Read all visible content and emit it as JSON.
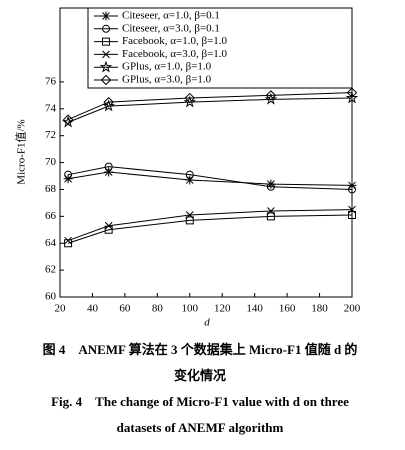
{
  "chart_data": {
    "type": "line",
    "x_label": "d",
    "y_label": "Micro-F1值/%",
    "x": [
      25,
      50,
      100,
      150,
      200
    ],
    "xlim": [
      20,
      200
    ],
    "xticks": [
      20,
      40,
      60,
      80,
      100,
      120,
      140,
      160,
      180,
      200
    ],
    "ylim": [
      60,
      81.5
    ],
    "yticks": [
      60,
      62,
      64,
      66,
      68,
      70,
      72,
      74,
      76
    ],
    "legend": "upper left",
    "series": [
      {
        "name": "Citeseer, α=1.0, β=0.1",
        "color": "#000000",
        "marker": "asterisk",
        "values": [
          68.8,
          69.3,
          68.7,
          68.4,
          68.3
        ]
      },
      {
        "name": "Citeseer, α=3.0, β=0.1",
        "color": "#000000",
        "marker": "circle",
        "values": [
          69.1,
          69.7,
          69.1,
          68.2,
          68.0
        ]
      },
      {
        "name": "Facebook, α=1.0, β=1.0",
        "color": "#000000",
        "marker": "square",
        "values": [
          64.0,
          65.0,
          65.7,
          66.0,
          66.1
        ]
      },
      {
        "name": "Facebook, α=3.0, β=1.0",
        "color": "#000000",
        "marker": "cross",
        "values": [
          64.2,
          65.3,
          66.1,
          66.4,
          66.5
        ]
      },
      {
        "name": "GPlus, α=1.0, β=1.0",
        "color": "#000000",
        "marker": "star",
        "values": [
          73.0,
          74.2,
          74.5,
          74.7,
          74.8
        ]
      },
      {
        "name": "GPlus, α=3.0, β=1.0",
        "color": "#000000",
        "marker": "diamond",
        "values": [
          73.2,
          74.5,
          74.8,
          75.0,
          75.2
        ]
      }
    ],
    "caption": [
      "图 4　ANEMF 算法在 3 个数据集上 Micro-F1 值随 d 的",
      "变化情况",
      "Fig. 4　The change of Micro-F1 value with d on three",
      "datasets of ANEMF algorithm"
    ]
  }
}
